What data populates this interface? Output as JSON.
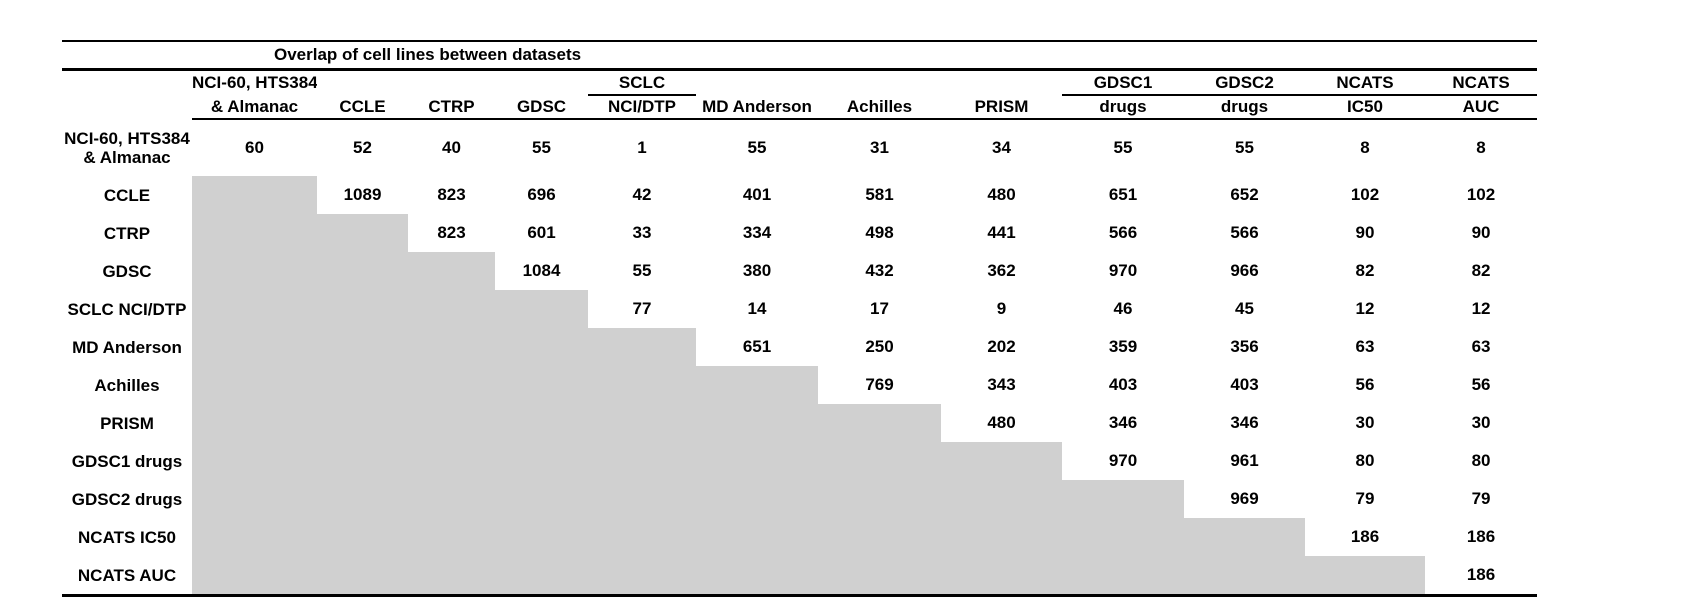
{
  "title": "Overlap of cell lines between datasets",
  "colors": {
    "shaded_cell": "#d0d0d0",
    "text": "#000000",
    "background": "#ffffff"
  },
  "table": {
    "columns": [
      {
        "line1": "NCI-60, HTS384",
        "line2": "& Almanac"
      },
      {
        "line1": "",
        "line2": "CCLE"
      },
      {
        "line1": "",
        "line2": "CTRP"
      },
      {
        "line1": "",
        "line2": "GDSC"
      },
      {
        "line1": "SCLC",
        "line2": "NCI/DTP"
      },
      {
        "line1": "",
        "line2": "MD Anderson"
      },
      {
        "line1": "",
        "line2": "Achilles"
      },
      {
        "line1": "",
        "line2": "PRISM"
      },
      {
        "line1": "GDSC1",
        "line2": "drugs"
      },
      {
        "line1": "GDSC2",
        "line2": "drugs"
      },
      {
        "line1": "NCATS",
        "line2": "IC50"
      },
      {
        "line1": "NCATS",
        "line2": "AUC"
      }
    ],
    "rows": [
      {
        "label": [
          "NCI-60, HTS384",
          "& Almanac"
        ],
        "values": [
          60,
          52,
          40,
          55,
          1,
          55,
          31,
          34,
          55,
          55,
          8,
          8
        ]
      },
      {
        "label": [
          "CCLE"
        ],
        "values": [
          null,
          1089,
          823,
          696,
          42,
          401,
          581,
          480,
          651,
          652,
          102,
          102
        ]
      },
      {
        "label": [
          "CTRP"
        ],
        "values": [
          null,
          null,
          823,
          601,
          33,
          334,
          498,
          441,
          566,
          566,
          90,
          90
        ]
      },
      {
        "label": [
          "GDSC"
        ],
        "values": [
          null,
          null,
          null,
          1084,
          55,
          380,
          432,
          362,
          970,
          966,
          82,
          82
        ]
      },
      {
        "label": [
          "SCLC NCI/DTP"
        ],
        "values": [
          null,
          null,
          null,
          null,
          77,
          14,
          17,
          9,
          46,
          45,
          12,
          12
        ]
      },
      {
        "label": [
          "MD Anderson"
        ],
        "values": [
          null,
          null,
          null,
          null,
          null,
          651,
          250,
          202,
          359,
          356,
          63,
          63
        ]
      },
      {
        "label": [
          "Achilles"
        ],
        "values": [
          null,
          null,
          null,
          null,
          null,
          null,
          769,
          343,
          403,
          403,
          56,
          56
        ]
      },
      {
        "label": [
          "PRISM"
        ],
        "values": [
          null,
          null,
          null,
          null,
          null,
          null,
          null,
          480,
          346,
          346,
          30,
          30
        ]
      },
      {
        "label": [
          "GDSC1 drugs"
        ],
        "values": [
          null,
          null,
          null,
          null,
          null,
          null,
          null,
          null,
          970,
          961,
          80,
          80
        ]
      },
      {
        "label": [
          "GDSC2 drugs"
        ],
        "values": [
          null,
          null,
          null,
          null,
          null,
          null,
          null,
          null,
          null,
          969,
          79,
          79
        ]
      },
      {
        "label": [
          "NCATS IC50"
        ],
        "values": [
          null,
          null,
          null,
          null,
          null,
          null,
          null,
          null,
          null,
          null,
          186,
          186
        ]
      },
      {
        "label": [
          "NCATS AUC"
        ],
        "values": [
          null,
          null,
          null,
          null,
          null,
          null,
          null,
          null,
          null,
          null,
          null,
          186
        ]
      }
    ]
  }
}
